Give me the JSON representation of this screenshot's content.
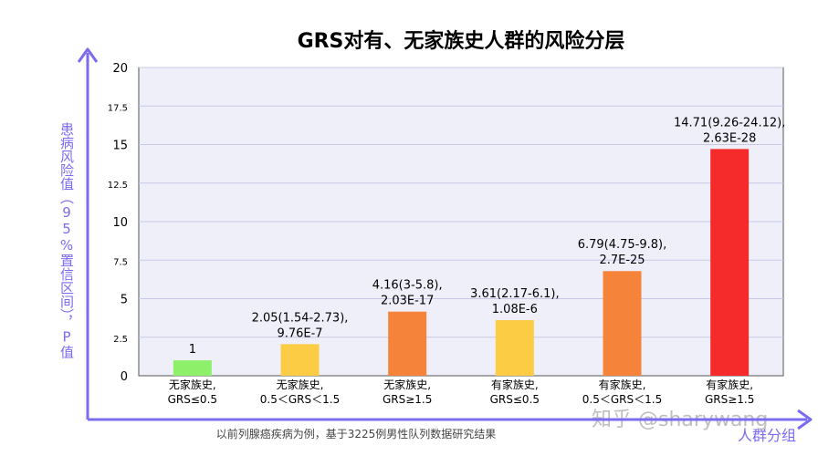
{
  "chart_data": {
    "type": "bar",
    "title": "GRS对有、无家族史人群的风险分层",
    "ylabel": "患病风险值（95%置信区间），P值",
    "xlabel": "人群分组",
    "ylim": [
      0,
      20
    ],
    "yticks": [
      {
        "value": 0,
        "label": "0"
      },
      {
        "value": 2.5,
        "label": "2.5"
      },
      {
        "value": 5,
        "label": "5"
      },
      {
        "value": 7.5,
        "label": "7.5"
      },
      {
        "value": 10,
        "label": "10"
      },
      {
        "value": 12.5,
        "label": "12.5"
      },
      {
        "value": 15,
        "label": "15"
      },
      {
        "value": 17.5,
        "label": "17.5"
      },
      {
        "value": 20,
        "label": "20"
      }
    ],
    "grid": true,
    "categories": [
      [
        "无家族史,",
        "GRS≤0.5"
      ],
      [
        "无家族史,",
        "0.5＜GRS＜1.5"
      ],
      [
        "无家族史,",
        "GRS≥1.5"
      ],
      [
        "有家族史,",
        "GRS≤0.5"
      ],
      [
        "有家族史,",
        "0.5＜GRS＜1.5"
      ],
      [
        "有家族史,",
        "GRS≥1.5"
      ]
    ],
    "values": [
      1,
      2.05,
      4.16,
      3.61,
      6.79,
      14.71
    ],
    "data_labels": [
      [
        "1"
      ],
      [
        "2.05(1.54-2.73),",
        "9.76E-7"
      ],
      [
        "4.16(3-5.8),",
        "2.03E-17"
      ],
      [
        "3.61(2.17-6.1),",
        "1.08E-6"
      ],
      [
        "6.79(4.75-9.8),",
        "2.7E-25"
      ],
      [
        "14.71(9.26-24.12),",
        "2.63E-28"
      ]
    ],
    "colors": [
      "#8ef06a",
      "#fccc44",
      "#f5843a",
      "#fccc44",
      "#f5843a",
      "#f52a2a"
    ]
  },
  "axis_color": "#7a6cf0",
  "grid_color": "#c8c8e6",
  "plot_bg": "#efeff9",
  "footnote": "以前列腺癌疾病为例，基于3225例男性队列数据研究结果",
  "watermark": "知乎 @sharywang"
}
